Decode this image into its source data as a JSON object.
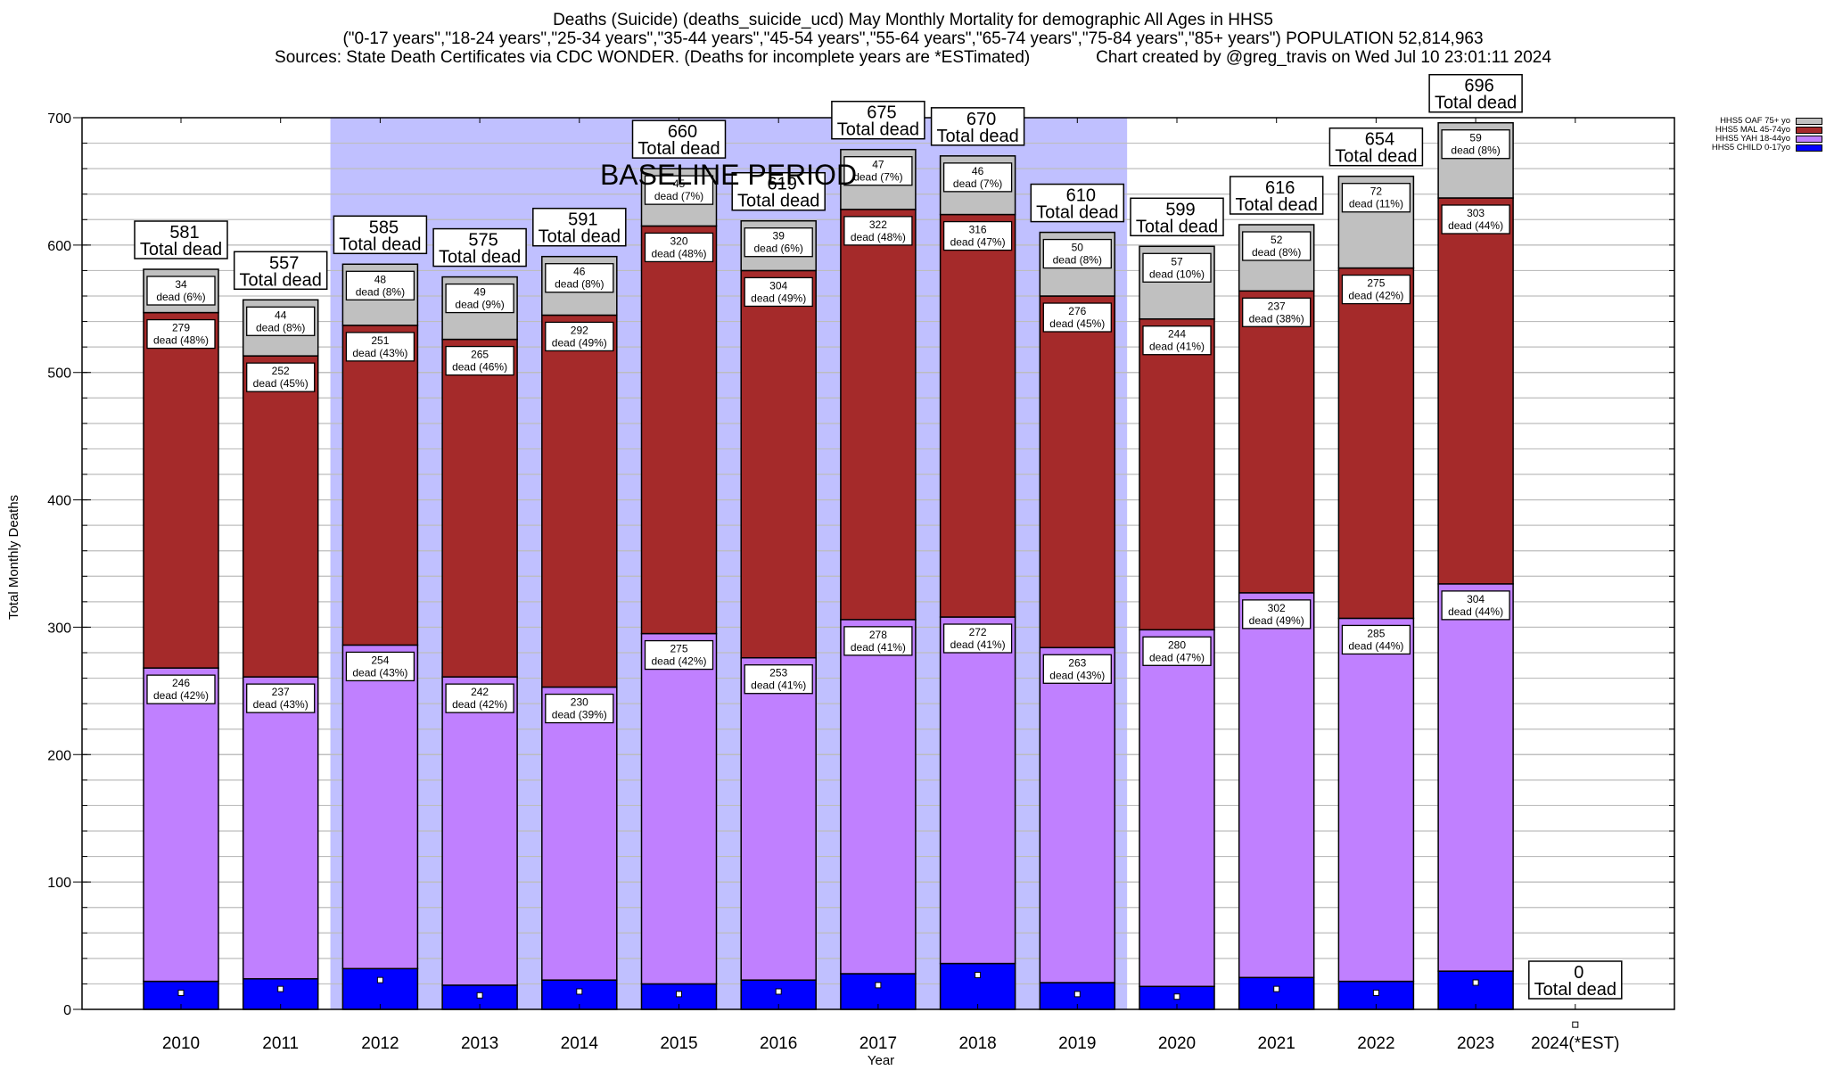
{
  "chart_data": {
    "type": "bar",
    "stacked": true,
    "title_lines": [
      "Deaths (Suicide) (deaths_suicide_ucd) May Monthly Mortality for demographic All Ages in HHS5",
      "(\"0-17 years\",\"18-24 years\",\"25-34 years\",\"35-44 years\",\"45-54 years\",\"55-64 years\",\"65-74 years\",\"75-84 years\",\"85+ years\") POPULATION 52,814,963",
      "Sources: State Death Certificates via CDC WONDER. (Deaths for incomplete years are *ESTimated)              Chart created by @greg_travis on Wed Jul 10 23:01:11 2024"
    ],
    "xlabel": "Year",
    "ylabel": "Total Monthly Deaths",
    "ylim": [
      0,
      700
    ],
    "yticks": [
      0,
      100,
      200,
      300,
      400,
      500,
      600,
      700
    ],
    "minor_grid_step": 20,
    "grid": true,
    "categories": [
      "2010",
      "2011",
      "2012",
      "2013",
      "2014",
      "2015",
      "2016",
      "2017",
      "2018",
      "2019",
      "2020",
      "2021",
      "2022",
      "2023",
      "2024(*EST)"
    ],
    "series": [
      {
        "name": "HHS5 CHILD 0-17yo",
        "color": "#0000ff",
        "values": [
          22,
          24,
          32,
          19,
          23,
          20,
          23,
          28,
          36,
          21,
          18,
          25,
          22,
          30,
          0
        ]
      },
      {
        "name": "HHS5 YAH 18-44yo",
        "color": "#c080ff",
        "values": [
          246,
          237,
          254,
          242,
          230,
          275,
          253,
          278,
          272,
          263,
          280,
          302,
          285,
          304,
          0
        ],
        "percent_labels": [
          "42%",
          "43%",
          "43%",
          "42%",
          "39%",
          "42%",
          "41%",
          "41%",
          "41%",
          "43%",
          "47%",
          "49%",
          "44%",
          "44%",
          ""
        ]
      },
      {
        "name": "HHS5 MAL 45-74yo",
        "color": "#a52a2a",
        "values": [
          279,
          252,
          251,
          265,
          292,
          320,
          304,
          322,
          316,
          276,
          244,
          237,
          275,
          303,
          0
        ],
        "percent_labels": [
          "48%",
          "45%",
          "43%",
          "46%",
          "49%",
          "48%",
          "49%",
          "48%",
          "47%",
          "45%",
          "41%",
          "38%",
          "42%",
          "44%",
          ""
        ]
      },
      {
        "name": "HHS5 OAF 75+ yo",
        "color": "#c0c0c0",
        "values": [
          34,
          44,
          48,
          49,
          46,
          45,
          39,
          47,
          46,
          50,
          57,
          52,
          72,
          59,
          0
        ],
        "percent_labels": [
          "6%",
          "8%",
          "8%",
          "9%",
          "8%",
          "7%",
          "6%",
          "7%",
          "7%",
          "8%",
          "10%",
          "8%",
          "11%",
          "8%",
          ""
        ]
      }
    ],
    "totals": [
      581,
      557,
      585,
      575,
      591,
      660,
      619,
      675,
      670,
      610,
      599,
      616,
      654,
      696,
      0
    ],
    "total_suffix": "Total dead",
    "segment_prefix": "dead",
    "markers": [
      13,
      16,
      23,
      11,
      14,
      12,
      14,
      19,
      27,
      12,
      10,
      16,
      13,
      21,
      -12
    ],
    "baseline_period": {
      "label": "BASELINE PERIOD",
      "from": "2012",
      "to": "2019",
      "color": "#c0c0ff"
    },
    "legend": {
      "placement": "top-right-outside",
      "entries": [
        {
          "label": "HHS5 OAF 75+ yo",
          "color": "#c0c0c0"
        },
        {
          "label": "HHS5 MAL 45-74yo",
          "color": "#a52a2a"
        },
        {
          "label": "HHS5 YAH 18-44yo",
          "color": "#c080ff"
        },
        {
          "label": "HHS5 CHILD 0-17yo",
          "color": "#0000ff"
        }
      ]
    }
  }
}
